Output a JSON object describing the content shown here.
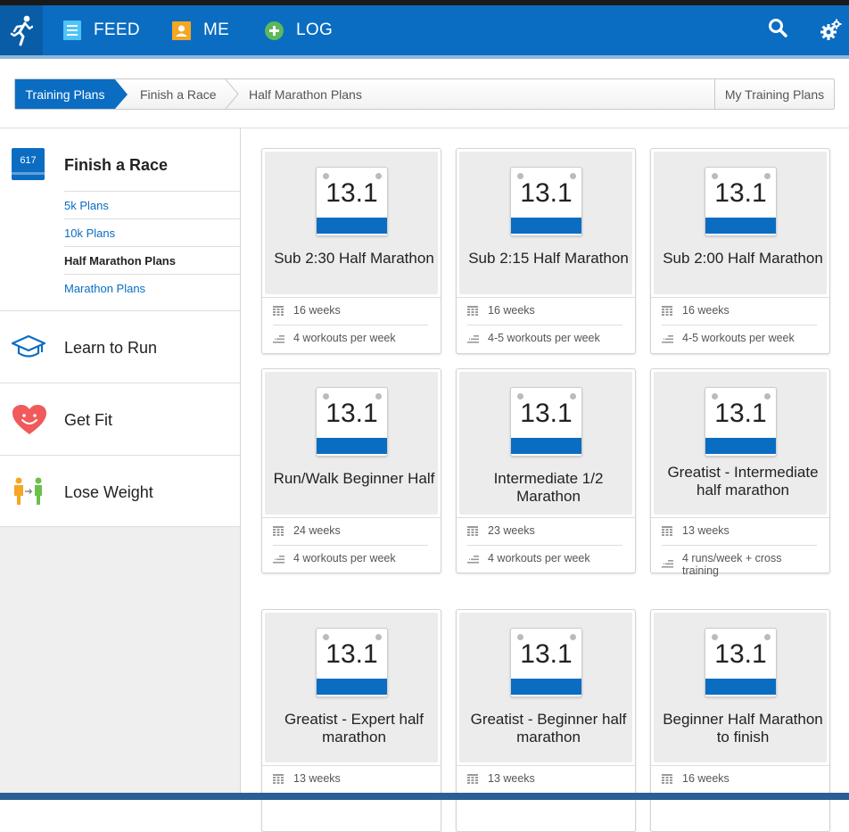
{
  "nav": {
    "items": [
      {
        "label": "FEED",
        "icon": "feed-icon"
      },
      {
        "label": "ME",
        "icon": "person-icon"
      },
      {
        "label": "LOG",
        "icon": "plus-icon"
      }
    ],
    "search_icon": "search-icon",
    "settings_icon": "gear-icon",
    "logo_icon": "runner-icon"
  },
  "breadcrumb": {
    "items": [
      "Training Plans",
      "Finish a Race",
      "Half Marathon Plans"
    ],
    "my_plans": "My Training Plans"
  },
  "sidebar": {
    "calendar_badge": "617",
    "finish_race": {
      "title": "Finish a Race",
      "items": [
        "5k Plans",
        "10k Plans",
        "Half Marathon Plans",
        "Marathon Plans"
      ],
      "active_index": 2
    },
    "categories": [
      {
        "label": "Learn to Run",
        "icon": "graduation-cap-icon"
      },
      {
        "label": "Get Fit",
        "icon": "heart-icon"
      },
      {
        "label": "Lose Weight",
        "icon": "people-icon"
      }
    ]
  },
  "plans": [
    {
      "badge": "13.1",
      "title": "Sub 2:30 Half Marathon",
      "weeks": "16 weeks",
      "workouts": "4 workouts per week"
    },
    {
      "badge": "13.1",
      "title": "Sub 2:15 Half Marathon",
      "weeks": "16 weeks",
      "workouts": "4-5 workouts per week"
    },
    {
      "badge": "13.1",
      "title": "Sub 2:00 Half Marathon",
      "weeks": "16 weeks",
      "workouts": "4-5 workouts per week"
    },
    {
      "badge": "13.1",
      "title": "Run/Walk Beginner Half",
      "weeks": "24 weeks",
      "workouts": "4 workouts per week"
    },
    {
      "badge": "13.1",
      "title": "Intermediate 1/2 Marathon",
      "weeks": "23 weeks",
      "workouts": "4 workouts per week"
    },
    {
      "badge": "13.1",
      "title": "Greatist - Intermediate half marathon",
      "weeks": "13 weeks",
      "workouts": "4 runs/week + cross training"
    },
    {
      "badge": "13.1",
      "title": "Greatist - Expert half marathon",
      "weeks": "13 weeks",
      "workouts": ""
    },
    {
      "badge": "13.1",
      "title": "Greatist - Beginner half marathon",
      "weeks": "13 weeks",
      "workouts": ""
    },
    {
      "badge": "13.1",
      "title": "Beginner Half Marathon to finish",
      "weeks": "16 weeks",
      "workouts": ""
    }
  ],
  "colors": {
    "brand": "#0b6dc2",
    "link": "#0b6dc2"
  }
}
